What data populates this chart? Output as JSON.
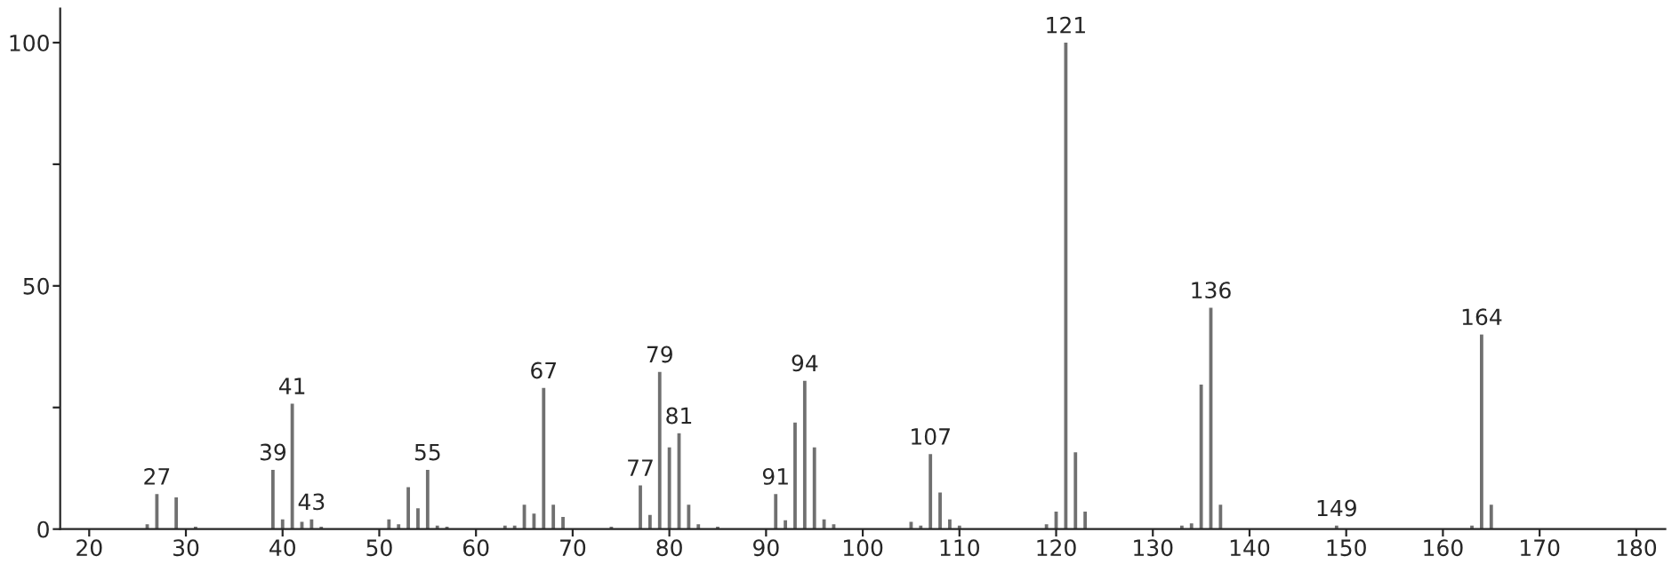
{
  "chart_data": {
    "type": "bar",
    "color": "#707070",
    "x": [
      26,
      27,
      29,
      31,
      39,
      40,
      41,
      42,
      43,
      44,
      51,
      52,
      53,
      54,
      55,
      56,
      57,
      63,
      64,
      65,
      66,
      67,
      68,
      69,
      74,
      77,
      78,
      79,
      80,
      81,
      82,
      83,
      85,
      91,
      92,
      93,
      94,
      95,
      96,
      97,
      105,
      106,
      107,
      108,
      109,
      110,
      119,
      120,
      121,
      122,
      123,
      133,
      134,
      135,
      136,
      137,
      149,
      163,
      164,
      165
    ],
    "values": [
      1,
      7.2,
      6.5,
      0.5,
      12.2,
      2,
      25.8,
      1.5,
      2,
      0.5,
      2,
      1,
      8.6,
      4.3,
      12.2,
      0.7,
      0.5,
      0.7,
      0.7,
      5,
      3.2,
      29,
      5,
      2.5,
      0.5,
      9,
      2.9,
      32.3,
      16.8,
      19.7,
      5,
      1,
      0.5,
      7.2,
      1.8,
      21.9,
      30.5,
      16.8,
      2,
      1,
      1.5,
      0.7,
      15.4,
      7.5,
      2,
      0.7,
      1,
      3.6,
      100,
      15.8,
      3.6,
      0.7,
      1.2,
      29.7,
      45.5,
      5,
      0.7,
      0.7,
      40,
      5
    ],
    "annotations": [
      {
        "text": "27",
        "x": 27,
        "y": 7.2
      },
      {
        "text": "39",
        "x": 39,
        "y": 12.2
      },
      {
        "text": "41",
        "x": 41,
        "y": 25.8
      },
      {
        "text": "43",
        "x": 43,
        "y": 2
      },
      {
        "text": "55",
        "x": 55,
        "y": 12.2
      },
      {
        "text": "67",
        "x": 67,
        "y": 29
      },
      {
        "text": "77",
        "x": 77,
        "y": 9
      },
      {
        "text": "79",
        "x": 79,
        "y": 32.3
      },
      {
        "text": "81",
        "x": 81,
        "y": 19.7
      },
      {
        "text": "91",
        "x": 91,
        "y": 7.2
      },
      {
        "text": "94",
        "x": 94,
        "y": 30.5
      },
      {
        "text": "107",
        "x": 107,
        "y": 15.4
      },
      {
        "text": "121",
        "x": 121,
        "y": 100
      },
      {
        "text": "136",
        "x": 136,
        "y": 45.5
      },
      {
        "text": "149",
        "x": 149,
        "y": 0.7
      },
      {
        "text": "164",
        "x": 164,
        "y": 40
      }
    ],
    "xlim": [
      17,
      183
    ],
    "xticks": [
      20,
      30,
      40,
      50,
      60,
      70,
      80,
      90,
      100,
      110,
      120,
      130,
      140,
      150,
      160,
      170,
      180
    ],
    "ylim": [
      0,
      107
    ],
    "yticks": [
      0,
      {
        "value": 25,
        "label": null
      },
      50,
      {
        "value": 75,
        "label": null
      },
      100
    ],
    "grid": false,
    "legend": false
  }
}
